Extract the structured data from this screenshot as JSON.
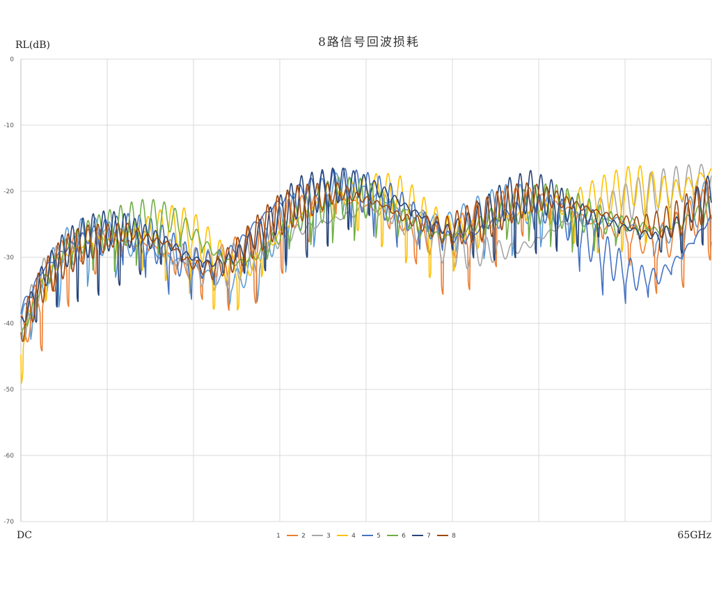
{
  "chart_data": {
    "type": "line",
    "title": "8路信号回波损耗",
    "ylabel": "RL(dB)",
    "x_start_label": "DC",
    "x_end_label": "65GHz",
    "ylim": [
      -70,
      0
    ],
    "yticks": [
      0,
      -10,
      -20,
      -30,
      -40,
      -50,
      -60,
      -70
    ],
    "ytick_labels": [
      "0",
      "-10",
      "-20",
      "-30",
      "-40",
      "-50",
      "-60",
      "-70"
    ],
    "x_gridlines": 8,
    "grid": true,
    "legend_position": "bottom",
    "series": [
      {
        "name": "1",
        "color": "#5b9bd5",
        "x": [
          0,
          2,
          4,
          6,
          8,
          10,
          12,
          14,
          16,
          18,
          20,
          22,
          24,
          26,
          28,
          30,
          32,
          34,
          36,
          38,
          40,
          42,
          44,
          46,
          48,
          50,
          52,
          54,
          56,
          58,
          60,
          62,
          64,
          65
        ],
        "y": [
          -40,
          -34,
          -29,
          -27,
          -27,
          -28,
          -29,
          -30,
          -31,
          -33,
          -34,
          -31,
          -26,
          -23,
          -21,
          -19,
          -20,
          -21,
          -23,
          -24,
          -25,
          -24,
          -23,
          -22,
          -22,
          -23,
          -24,
          -25,
          -24,
          -26,
          -27,
          -25,
          -22,
          -21
        ]
      },
      {
        "name": "2",
        "color": "#ed7d31",
        "x": [
          0,
          2,
          4,
          6,
          8,
          10,
          12,
          14,
          16,
          18,
          20,
          22,
          24,
          26,
          28,
          30,
          32,
          34,
          36,
          38,
          40,
          42,
          44,
          46,
          48,
          50,
          52,
          54,
          56,
          58,
          60,
          62,
          64,
          65
        ],
        "y": [
          -42,
          -35,
          -30,
          -28,
          -27,
          -28,
          -28,
          -30,
          -32,
          -31,
          -30,
          -28,
          -25,
          -23,
          -22,
          -21,
          -22,
          -23,
          -25,
          -27,
          -28,
          -26,
          -24,
          -22,
          -21,
          -22,
          -23,
          -25,
          -26,
          -27,
          -28,
          -26,
          -23,
          -22
        ]
      },
      {
        "name": "3",
        "color": "#a5a5a5",
        "x": [
          0,
          2,
          4,
          6,
          8,
          10,
          12,
          14,
          16,
          18,
          20,
          22,
          24,
          26,
          28,
          30,
          32,
          34,
          36,
          38,
          40,
          42,
          44,
          46,
          48,
          50,
          52,
          54,
          56,
          58,
          60,
          62,
          64,
          65
        ],
        "y": [
          -41,
          -33,
          -29,
          -27,
          -26,
          -26,
          -27,
          -29,
          -31,
          -32,
          -31,
          -29,
          -27,
          -26,
          -25,
          -24,
          -23,
          -22,
          -24,
          -26,
          -28,
          -29,
          -29,
          -29,
          -28,
          -26,
          -24,
          -23,
          -22,
          -21,
          -20,
          -19,
          -18,
          -18
        ]
      },
      {
        "name": "4",
        "color": "#ffc000",
        "x": [
          0,
          2,
          4,
          6,
          8,
          10,
          12,
          14,
          16,
          18,
          20,
          22,
          24,
          26,
          28,
          30,
          32,
          34,
          36,
          38,
          40,
          42,
          44,
          46,
          48,
          50,
          52,
          54,
          56,
          58,
          60,
          62,
          64,
          65
        ],
        "y": [
          -43,
          -34,
          -30,
          -28,
          -27,
          -27,
          -26,
          -25,
          -26,
          -29,
          -32,
          -31,
          -27,
          -24,
          -22,
          -21,
          -20,
          -20,
          -21,
          -24,
          -26,
          -26,
          -25,
          -24,
          -23,
          -22,
          -22,
          -21,
          -20,
          -19,
          -20,
          -20,
          -18,
          -17
        ]
      },
      {
        "name": "5",
        "color": "#4472c4",
        "x": [
          0,
          2,
          4,
          6,
          8,
          10,
          12,
          14,
          16,
          18,
          20,
          22,
          24,
          26,
          28,
          30,
          32,
          34,
          36,
          38,
          40,
          42,
          44,
          46,
          48,
          50,
          52,
          54,
          56,
          58,
          60,
          62,
          64,
          65
        ],
        "y": [
          -38,
          -32,
          -29,
          -27,
          -26,
          -26,
          -27,
          -29,
          -31,
          -31,
          -29,
          -25,
          -22,
          -20,
          -19,
          -19,
          -20,
          -21,
          -23,
          -25,
          -27,
          -27,
          -25,
          -23,
          -22,
          -23,
          -25,
          -28,
          -31,
          -33,
          -33,
          -30,
          -26,
          -24
        ]
      },
      {
        "name": "6",
        "color": "#70ad47",
        "x": [
          0,
          2,
          4,
          6,
          8,
          10,
          12,
          14,
          16,
          18,
          20,
          22,
          24,
          26,
          28,
          30,
          32,
          34,
          36,
          38,
          40,
          42,
          44,
          46,
          48,
          50,
          52,
          54,
          56,
          58,
          60,
          62,
          64,
          65
        ],
        "y": [
          -42,
          -34,
          -29,
          -27,
          -26,
          -25,
          -24,
          -24,
          -26,
          -29,
          -31,
          -30,
          -27,
          -24,
          -22,
          -21,
          -21,
          -22,
          -24,
          -26,
          -27,
          -26,
          -24,
          -23,
          -22,
          -22,
          -23,
          -24,
          -25,
          -25,
          -26,
          -25,
          -23,
          -22
        ]
      },
      {
        "name": "7",
        "color": "#264478",
        "x": [
          0,
          2,
          4,
          6,
          8,
          10,
          12,
          14,
          16,
          18,
          20,
          22,
          24,
          26,
          28,
          30,
          32,
          34,
          36,
          38,
          40,
          42,
          44,
          46,
          48,
          50,
          52,
          54,
          56,
          58,
          60,
          62,
          64,
          65
        ],
        "y": [
          -40,
          -33,
          -29,
          -27,
          -26,
          -26,
          -27,
          -28,
          -30,
          -31,
          -30,
          -27,
          -24,
          -21,
          -20,
          -19,
          -19,
          -20,
          -22,
          -24,
          -26,
          -25,
          -23,
          -21,
          -20,
          -21,
          -23,
          -24,
          -25,
          -26,
          -27,
          -25,
          -21,
          -20
        ]
      },
      {
        "name": "8",
        "color": "#9e480e",
        "x": [
          0,
          2,
          4,
          6,
          8,
          10,
          12,
          14,
          16,
          18,
          20,
          22,
          24,
          26,
          28,
          30,
          32,
          34,
          36,
          38,
          40,
          42,
          44,
          46,
          48,
          50,
          52,
          54,
          56,
          58,
          60,
          62,
          64,
          65
        ],
        "y": [
          -41,
          -34,
          -30,
          -28,
          -27,
          -26,
          -27,
          -28,
          -31,
          -32,
          -30,
          -27,
          -24,
          -22,
          -21,
          -20,
          -21,
          -22,
          -24,
          -25,
          -26,
          -25,
          -24,
          -22,
          -21,
          -21,
          -22,
          -23,
          -24,
          -25,
          -25,
          -24,
          -22,
          -21
        ]
      }
    ]
  }
}
